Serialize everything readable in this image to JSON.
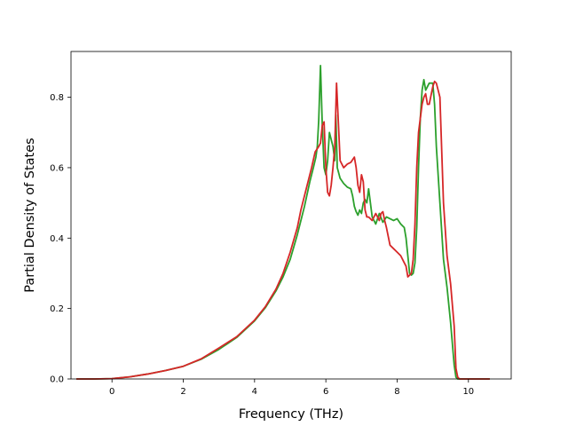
{
  "chart_data": {
    "type": "line",
    "title": "",
    "xlabel": "Frequency (THz)",
    "ylabel": "Partial Density of States",
    "xlim": [
      -1.15,
      11.2
    ],
    "ylim": [
      0.0,
      0.93
    ],
    "xticks": [
      0,
      2,
      4,
      6,
      8,
      10
    ],
    "yticks": [
      0.0,
      0.2,
      0.4,
      0.6,
      0.8
    ],
    "xtick_labels": [
      "0",
      "2",
      "4",
      "6",
      "8",
      "10"
    ],
    "ytick_labels": [
      "0.0",
      "0.2",
      "0.4",
      "0.6",
      "0.8"
    ],
    "grid": false,
    "legend": "none",
    "series": [
      {
        "color": "#2ca02c",
        "x": [
          -1.0,
          -0.5,
          0.0,
          0.5,
          1.0,
          1.5,
          2.0,
          2.5,
          3.0,
          3.5,
          4.0,
          4.3,
          4.6,
          4.8,
          5.0,
          5.2,
          5.4,
          5.55,
          5.65,
          5.72,
          5.76,
          5.8,
          5.85,
          5.9,
          5.95,
          6.0,
          6.05,
          6.1,
          6.15,
          6.2,
          6.25,
          6.28,
          6.32,
          6.4,
          6.5,
          6.6,
          6.7,
          6.75,
          6.8,
          6.85,
          6.9,
          6.95,
          7.0,
          7.05,
          7.1,
          7.15,
          7.2,
          7.3,
          7.4,
          7.5,
          7.6,
          7.7,
          7.8,
          7.9,
          8.0,
          8.1,
          8.2,
          8.25,
          8.3,
          8.35,
          8.4,
          8.45,
          8.5,
          8.55,
          8.6,
          8.65,
          8.7,
          8.75,
          8.8,
          8.85,
          8.9,
          9.0,
          9.05,
          9.1,
          9.2,
          9.3,
          9.4,
          9.5,
          9.6,
          9.65,
          9.7,
          9.75,
          9.8,
          10.0,
          10.6
        ],
        "y": [
          0.0,
          0.0,
          0.001,
          0.006,
          0.014,
          0.024,
          0.036,
          0.056,
          0.084,
          0.118,
          0.165,
          0.202,
          0.25,
          0.29,
          0.34,
          0.41,
          0.49,
          0.56,
          0.6,
          0.63,
          0.66,
          0.735,
          0.89,
          0.72,
          0.6,
          0.58,
          0.62,
          0.7,
          0.68,
          0.66,
          0.62,
          0.75,
          0.6,
          0.57,
          0.555,
          0.545,
          0.54,
          0.52,
          0.49,
          0.475,
          0.465,
          0.48,
          0.47,
          0.5,
          0.51,
          0.5,
          0.54,
          0.46,
          0.44,
          0.47,
          0.445,
          0.46,
          0.455,
          0.45,
          0.455,
          0.44,
          0.43,
          0.4,
          0.35,
          0.3,
          0.295,
          0.3,
          0.33,
          0.43,
          0.6,
          0.74,
          0.82,
          0.85,
          0.82,
          0.83,
          0.84,
          0.84,
          0.78,
          0.66,
          0.5,
          0.34,
          0.26,
          0.16,
          0.04,
          0.005,
          0.0,
          0.0,
          0.0,
          0.0,
          0.0
        ]
      },
      {
        "color": "#d62728",
        "x": [
          -1.0,
          -0.5,
          0.0,
          0.5,
          1.0,
          1.5,
          2.0,
          2.5,
          3.0,
          3.5,
          4.0,
          4.3,
          4.6,
          4.8,
          5.0,
          5.2,
          5.3,
          5.45,
          5.6,
          5.7,
          5.8,
          5.85,
          5.9,
          5.95,
          6.0,
          6.05,
          6.1,
          6.15,
          6.2,
          6.25,
          6.3,
          6.4,
          6.5,
          6.6,
          6.7,
          6.8,
          6.85,
          6.9,
          6.95,
          7.0,
          7.05,
          7.1,
          7.15,
          7.2,
          7.3,
          7.4,
          7.5,
          7.55,
          7.6,
          7.65,
          7.7,
          7.8,
          7.9,
          8.0,
          8.1,
          8.2,
          8.25,
          8.3,
          8.4,
          8.45,
          8.5,
          8.55,
          8.6,
          8.65,
          8.7,
          8.75,
          8.8,
          8.85,
          8.9,
          9.0,
          9.05,
          9.1,
          9.2,
          9.3,
          9.4,
          9.5,
          9.6,
          9.65,
          9.7,
          9.75,
          9.8,
          10.0,
          10.6
        ],
        "y": [
          0.0,
          0.0,
          0.001,
          0.006,
          0.014,
          0.024,
          0.036,
          0.057,
          0.088,
          0.12,
          0.167,
          0.205,
          0.255,
          0.3,
          0.36,
          0.43,
          0.48,
          0.54,
          0.6,
          0.645,
          0.66,
          0.67,
          0.72,
          0.73,
          0.6,
          0.53,
          0.52,
          0.55,
          0.6,
          0.66,
          0.84,
          0.62,
          0.6,
          0.61,
          0.615,
          0.63,
          0.6,
          0.55,
          0.53,
          0.58,
          0.56,
          0.48,
          0.46,
          0.46,
          0.45,
          0.47,
          0.45,
          0.47,
          0.475,
          0.45,
          0.43,
          0.38,
          0.37,
          0.36,
          0.35,
          0.33,
          0.32,
          0.29,
          0.3,
          0.34,
          0.44,
          0.6,
          0.7,
          0.74,
          0.78,
          0.8,
          0.81,
          0.78,
          0.78,
          0.83,
          0.845,
          0.84,
          0.8,
          0.5,
          0.35,
          0.27,
          0.15,
          0.03,
          0.005,
          0.0,
          0.0,
          0.0,
          0.0
        ]
      }
    ]
  }
}
